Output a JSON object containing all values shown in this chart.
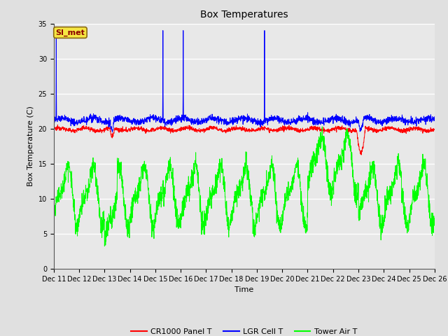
{
  "title": "Box Temperatures",
  "xlabel": "Time",
  "ylabel": "Box Temperature (C)",
  "ylim": [
    0,
    35
  ],
  "yticks": [
    0,
    5,
    10,
    15,
    20,
    25,
    30,
    35
  ],
  "x_labels": [
    "Dec 11",
    "Dec 12",
    "Dec 13",
    "Dec 14",
    "Dec 15",
    "Dec 16",
    "Dec 17",
    "Dec 18",
    "Dec 19",
    "Dec 20",
    "Dec 21",
    "Dec 22",
    "Dec 23",
    "Dec 24",
    "Dec 25",
    "Dec 26"
  ],
  "legend_labels": [
    "CR1000 Panel T",
    "LGR Cell T",
    "Tower Air T"
  ],
  "legend_colors": [
    "red",
    "blue",
    "green"
  ],
  "annotation_label": "SI_met",
  "fig_bg": "#e0e0e0",
  "ax_bg": "#e8e8e8",
  "grid_color": "white",
  "title_fontsize": 10,
  "axis_label_fontsize": 8,
  "tick_fontsize": 7,
  "legend_fontsize": 8
}
